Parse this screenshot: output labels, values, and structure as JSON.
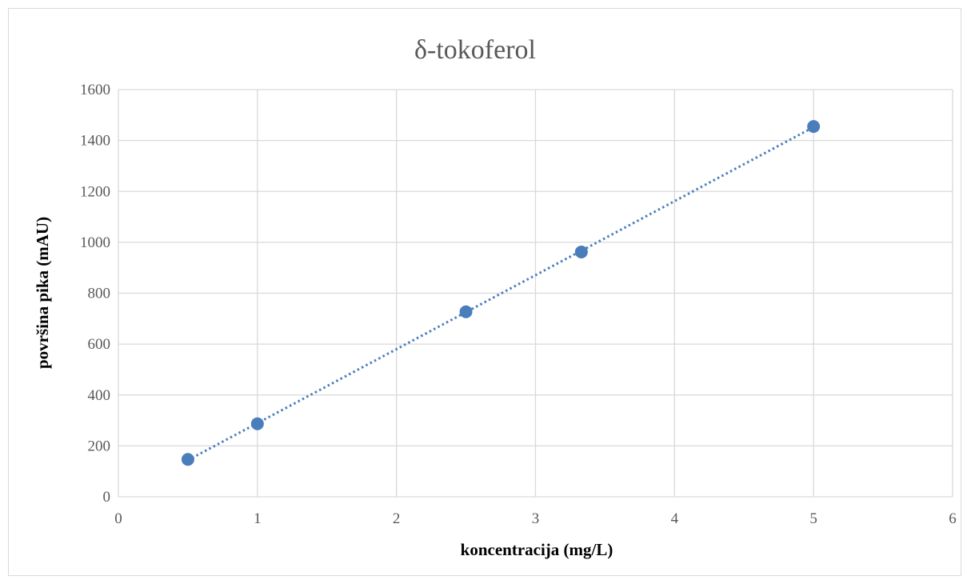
{
  "chart_data": {
    "type": "scatter",
    "title": "δ-tokoferol",
    "xlabel": "koncentracija (mg/L)",
    "ylabel": "površina pika (mAU)",
    "xlim": [
      0,
      6
    ],
    "ylim": [
      0,
      1600
    ],
    "x_ticks": [
      "0",
      "1",
      "2",
      "3",
      "4",
      "5",
      "6"
    ],
    "y_ticks": [
      "0",
      "200",
      "400",
      "600",
      "800",
      "1000",
      "1200",
      "1400",
      "1600"
    ],
    "grid": true,
    "legend": "none",
    "trendline": "linear",
    "series": [
      {
        "x": [
          0.5,
          1,
          2.5,
          3.33,
          5
        ],
        "y": [
          147,
          287,
          727,
          962,
          1455
        ],
        "color": "#4a7ebb"
      }
    ]
  }
}
